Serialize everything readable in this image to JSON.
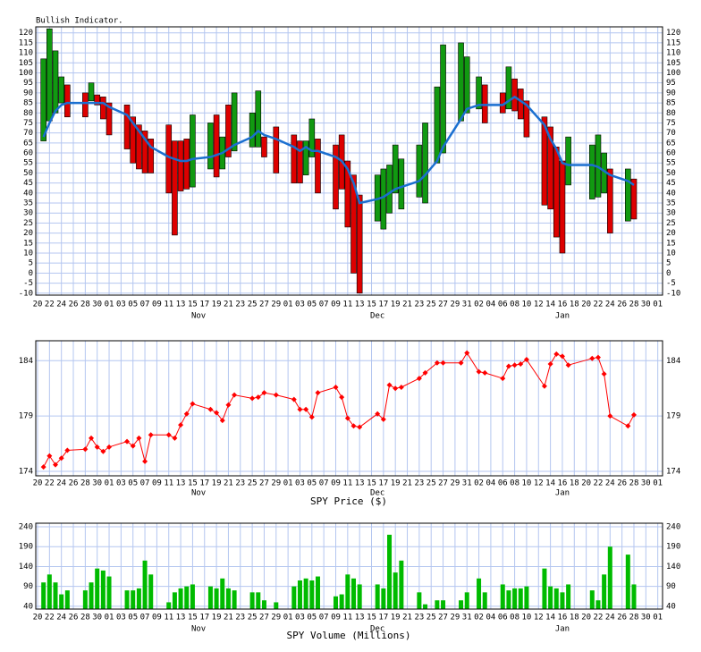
{
  "chart_data": [
    {
      "type": "indicator",
      "title": "Bullish Indicator.",
      "xlim": [
        -0.3,
        104.8
      ],
      "xticks": [
        {
          "value": 0,
          "label": "20"
        },
        {
          "value": 2,
          "label": "22"
        },
        {
          "value": 4,
          "label": "24"
        },
        {
          "value": 6,
          "label": "26"
        },
        {
          "value": 8,
          "label": "28"
        },
        {
          "value": 10,
          "label": "30"
        },
        {
          "value": 12,
          "label": "01"
        },
        {
          "value": 14,
          "label": "03"
        },
        {
          "value": 16,
          "label": "05"
        },
        {
          "value": 18,
          "label": "07"
        },
        {
          "value": 20,
          "label": "09"
        },
        {
          "value": 22,
          "label": "11"
        },
        {
          "value": 24,
          "label": "13"
        },
        {
          "value": 26,
          "label": "15"
        },
        {
          "value": 28,
          "label": "17"
        },
        {
          "value": 30,
          "label": "19"
        },
        {
          "value": 32,
          "label": "21"
        },
        {
          "value": 34,
          "label": "23"
        },
        {
          "value": 36,
          "label": "25"
        },
        {
          "value": 38,
          "label": "27"
        },
        {
          "value": 40,
          "label": "29"
        },
        {
          "value": 42,
          "label": "01"
        },
        {
          "value": 44,
          "label": "03"
        },
        {
          "value": 46,
          "label": "05"
        },
        {
          "value": 48,
          "label": "07"
        },
        {
          "value": 50,
          "label": "09"
        },
        {
          "value": 52,
          "label": "11"
        },
        {
          "value": 54,
          "label": "13"
        },
        {
          "value": 56,
          "label": "15"
        },
        {
          "value": 58,
          "label": "17"
        },
        {
          "value": 60,
          "label": "19"
        },
        {
          "value": 62,
          "label": "21"
        },
        {
          "value": 64,
          "label": "23"
        },
        {
          "value": 66,
          "label": "25"
        },
        {
          "value": 68,
          "label": "27"
        },
        {
          "value": 70,
          "label": "29"
        },
        {
          "value": 72,
          "label": "31"
        },
        {
          "value": 74,
          "label": "02"
        },
        {
          "value": 76,
          "label": "04"
        },
        {
          "value": 78,
          "label": "06"
        },
        {
          "value": 80,
          "label": "08"
        },
        {
          "value": 82,
          "label": "10"
        },
        {
          "value": 84,
          "label": "12"
        },
        {
          "value": 86,
          "label": "14"
        },
        {
          "value": 88,
          "label": "16"
        },
        {
          "value": 90,
          "label": "18"
        },
        {
          "value": 92,
          "label": "20"
        },
        {
          "value": 94,
          "label": "22"
        },
        {
          "value": 96,
          "label": "24"
        },
        {
          "value": 98,
          "label": "26"
        },
        {
          "value": 100,
          "label": "28"
        },
        {
          "value": 102,
          "label": "30"
        },
        {
          "value": 104,
          "label": "01"
        }
      ],
      "months": [
        {
          "value": 27,
          "label": "Nov"
        },
        {
          "value": 57,
          "label": "Dec"
        },
        {
          "value": 88,
          "label": "Jan"
        }
      ],
      "ylim": [
        -11,
        123
      ],
      "yticks": [
        -10,
        -5,
        0,
        5,
        10,
        15,
        20,
        25,
        30,
        35,
        40,
        45,
        50,
        55,
        60,
        65,
        70,
        75,
        80,
        85,
        90,
        95,
        100,
        105,
        110,
        115,
        120
      ],
      "up_color": "#119911",
      "down_color": "#dd0000",
      "line_color": "#1a6fd0",
      "x": [
        1,
        2,
        3,
        4,
        5,
        8,
        9,
        10,
        11,
        12,
        15,
        16,
        17,
        18,
        19,
        22,
        23,
        24,
        25,
        26,
        29,
        30,
        31,
        32,
        33,
        36,
        37,
        38,
        40,
        43,
        44,
        45,
        46,
        47,
        50,
        51,
        52,
        53,
        54,
        57,
        58,
        59,
        60,
        61,
        64,
        65,
        67,
        68,
        71,
        72,
        74,
        75,
        78,
        79,
        80,
        81,
        82,
        85,
        86,
        87,
        88,
        89,
        93,
        94,
        95,
        96,
        99,
        100
      ],
      "open": [
        66,
        76,
        80,
        85,
        94,
        90,
        86,
        89,
        88,
        85,
        84,
        78,
        74,
        71,
        67,
        74,
        66,
        66,
        67,
        43,
        52,
        79,
        52,
        84,
        61,
        63,
        63,
        68,
        73,
        69,
        66,
        49,
        58,
        67,
        64,
        69,
        56,
        49,
        39,
        26,
        22,
        30,
        40,
        32,
        38,
        35,
        55,
        60,
        76,
        80,
        82,
        94,
        90,
        82,
        97,
        92,
        86,
        78,
        73,
        63,
        56,
        44,
        37,
        38,
        40,
        52,
        26,
        47
      ],
      "close": [
        107,
        122,
        111,
        98,
        78,
        78,
        95,
        84,
        77,
        69,
        62,
        55,
        52,
        50,
        50,
        40,
        19,
        41,
        42,
        79,
        75,
        48,
        68,
        58,
        90,
        80,
        91,
        58,
        50,
        45,
        45,
        66,
        77,
        40,
        32,
        42,
        23,
        0,
        -10,
        49,
        52,
        54,
        64,
        57,
        64,
        75,
        93,
        114,
        115,
        108,
        98,
        75,
        80,
        103,
        81,
        77,
        68,
        34,
        32,
        18,
        10,
        68,
        64,
        69,
        60,
        20,
        52,
        27
      ],
      "average": [
        68,
        75,
        81,
        84,
        85,
        85,
        85,
        85,
        85,
        83,
        79,
        75,
        71,
        67,
        63,
        58,
        57,
        56,
        56,
        57,
        58,
        59,
        60,
        62,
        64,
        68,
        71,
        69,
        67,
        63,
        61,
        63,
        61,
        61,
        58,
        56,
        52,
        45,
        35,
        37,
        38,
        40,
        42,
        43,
        46,
        49,
        56,
        63,
        77,
        82,
        84,
        84,
        84,
        86,
        88,
        86,
        84,
        74,
        67,
        62,
        55,
        54,
        54,
        53,
        51,
        49,
        46,
        44
      ]
    },
    {
      "type": "line",
      "xlabel": "SPY Price ($)",
      "color": "#ff0000",
      "ylim": [
        173.6,
        185.8
      ],
      "yticks": [
        174,
        179,
        184
      ],
      "values": [
        174.4,
        175.4,
        174.6,
        175.2,
        175.9,
        176.0,
        177.0,
        176.2,
        175.8,
        176.2,
        176.7,
        176.3,
        177.0,
        174.9,
        177.3,
        177.3,
        177.0,
        178.2,
        179.2,
        180.1,
        179.6,
        179.3,
        178.6,
        180.0,
        180.9,
        180.6,
        180.7,
        181.1,
        180.9,
        180.5,
        179.6,
        179.6,
        178.9,
        181.1,
        181.6,
        180.7,
        178.8,
        178.1,
        178.0,
        179.2,
        178.7,
        181.8,
        181.5,
        181.6,
        182.4,
        182.9,
        183.8,
        183.8,
        183.8,
        184.7,
        183.0,
        182.9,
        182.4,
        183.5,
        183.6,
        183.7,
        184.1,
        181.7,
        183.7,
        184.6,
        184.4,
        183.6,
        184.2,
        184.3,
        182.8,
        179.0,
        178.1,
        179.1
      ]
    },
    {
      "type": "bar",
      "xlabel": "SPY Volume (Millions)",
      "color": "#00bb00",
      "ylim": [
        33,
        249
      ],
      "yticks": [
        40,
        90,
        140,
        190,
        240
      ],
      "values": [
        100,
        120,
        100,
        70,
        80,
        80,
        100,
        135,
        130,
        115,
        80,
        80,
        85,
        155,
        120,
        50,
        75,
        85,
        90,
        95,
        90,
        85,
        110,
        85,
        80,
        75,
        75,
        55,
        50,
        90,
        105,
        110,
        105,
        115,
        65,
        70,
        120,
        110,
        95,
        95,
        85,
        220,
        125,
        155,
        75,
        45,
        55,
        55,
        55,
        75,
        110,
        75,
        95,
        80,
        85,
        85,
        90,
        135,
        90,
        85,
        75,
        95,
        80,
        55,
        120,
        190,
        170,
        95
      ]
    }
  ]
}
